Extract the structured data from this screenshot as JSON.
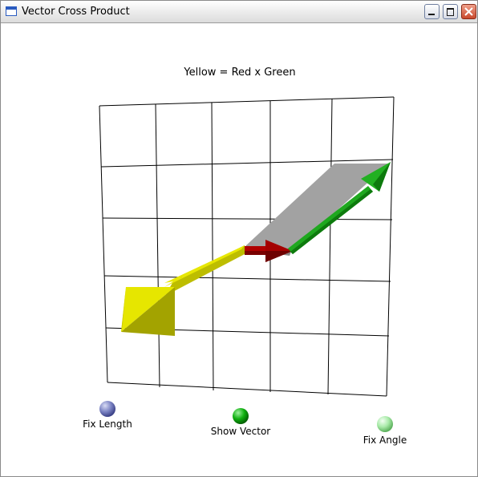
{
  "window": {
    "title": "Vector Cross Product"
  },
  "scene": {
    "caption": "Yellow = Red x Green",
    "colors": {
      "red_vector": "#a00000",
      "green_vector": "#1aa01a",
      "yellow_vector": "#e2e200",
      "gray_parallelogram": "#a0a0a0",
      "grid_line": "#000000"
    }
  },
  "controls": {
    "fix_length": {
      "label": "Fix Length",
      "color": "#6a72b8"
    },
    "show_vector": {
      "label": "Show Vector",
      "color": "#10a010"
    },
    "fix_angle": {
      "label": "Fix Angle",
      "color": "#90e090"
    }
  }
}
